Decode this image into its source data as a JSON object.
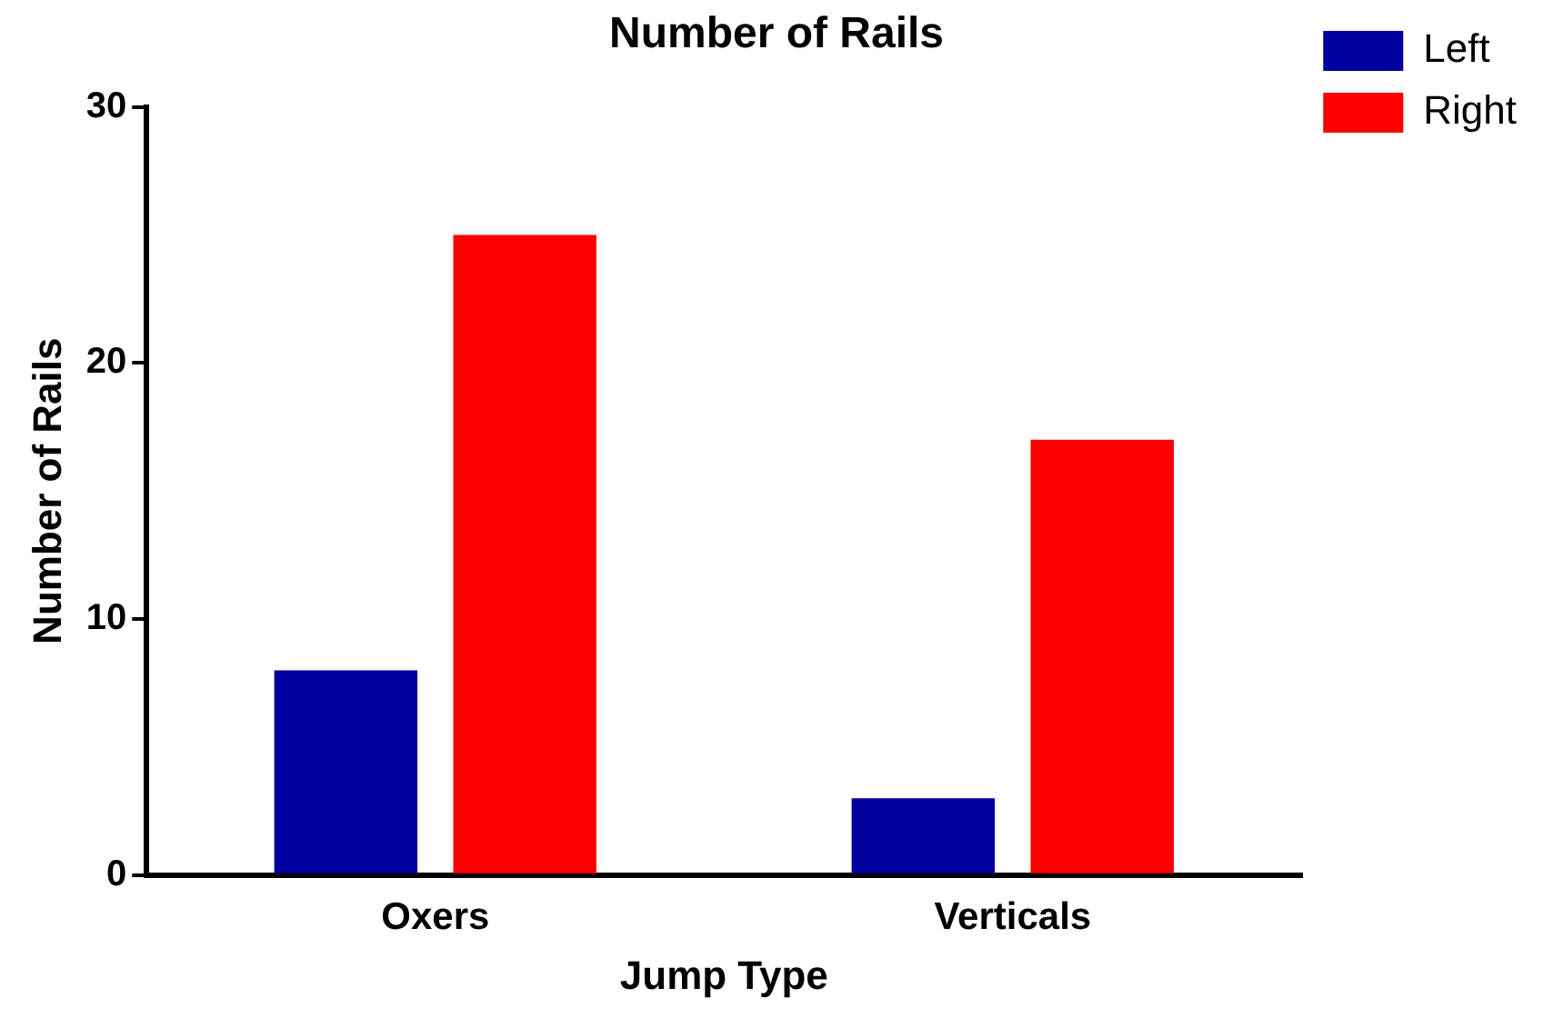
{
  "chart_data": {
    "type": "bar",
    "title": "Number of Rails",
    "xlabel": "Jump Type",
    "ylabel": "Number of Rails",
    "categories": [
      "Oxers",
      "Verticals"
    ],
    "series": [
      {
        "name": "Left",
        "color": "#0000a0",
        "values": [
          8,
          3
        ]
      },
      {
        "name": "Right",
        "color": "#ff0000",
        "values": [
          25,
          17
        ]
      }
    ],
    "ylim": [
      0,
      30
    ],
    "yticks": [
      0,
      10,
      20,
      30
    ],
    "grid": false,
    "legend": "top right"
  }
}
